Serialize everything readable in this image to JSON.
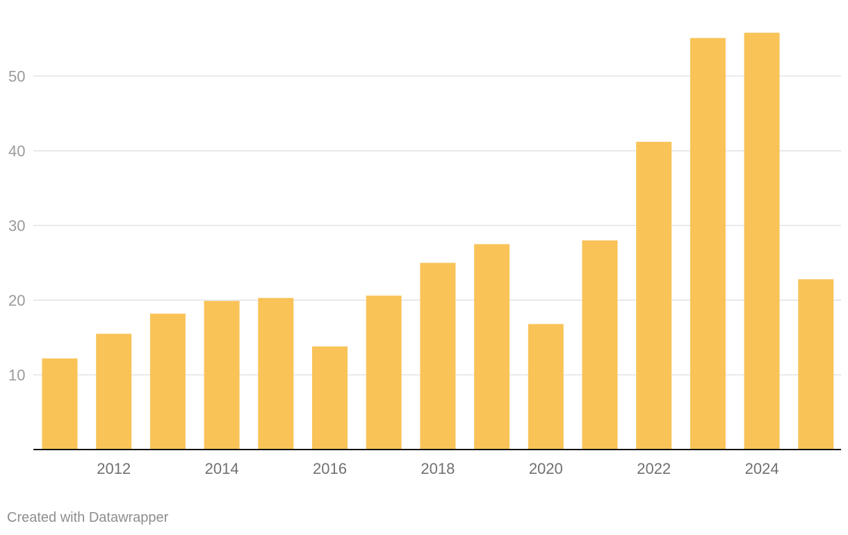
{
  "chart_data": {
    "type": "bar",
    "title": "",
    "xlabel": "",
    "ylabel": "",
    "x": [
      2011,
      2012,
      2013,
      2014,
      2015,
      2016,
      2017,
      2018,
      2019,
      2020,
      2021,
      2022,
      2023,
      2024,
      2025
    ],
    "values": [
      12.2,
      15.5,
      18.2,
      19.9,
      20.3,
      13.8,
      20.6,
      25.0,
      27.5,
      16.8,
      28.0,
      41.2,
      55.1,
      55.8,
      22.8
    ],
    "ylim": [
      0,
      60
    ],
    "yticks": [
      10,
      20,
      30,
      40,
      50
    ],
    "xtick_labels": [
      "2012",
      "2014",
      "2016",
      "2018",
      "2020",
      "2022",
      "2024"
    ],
    "grid": "horizontal",
    "bar_color": "#f9c358"
  },
  "footer": {
    "credit": "Created with Datawrapper"
  }
}
